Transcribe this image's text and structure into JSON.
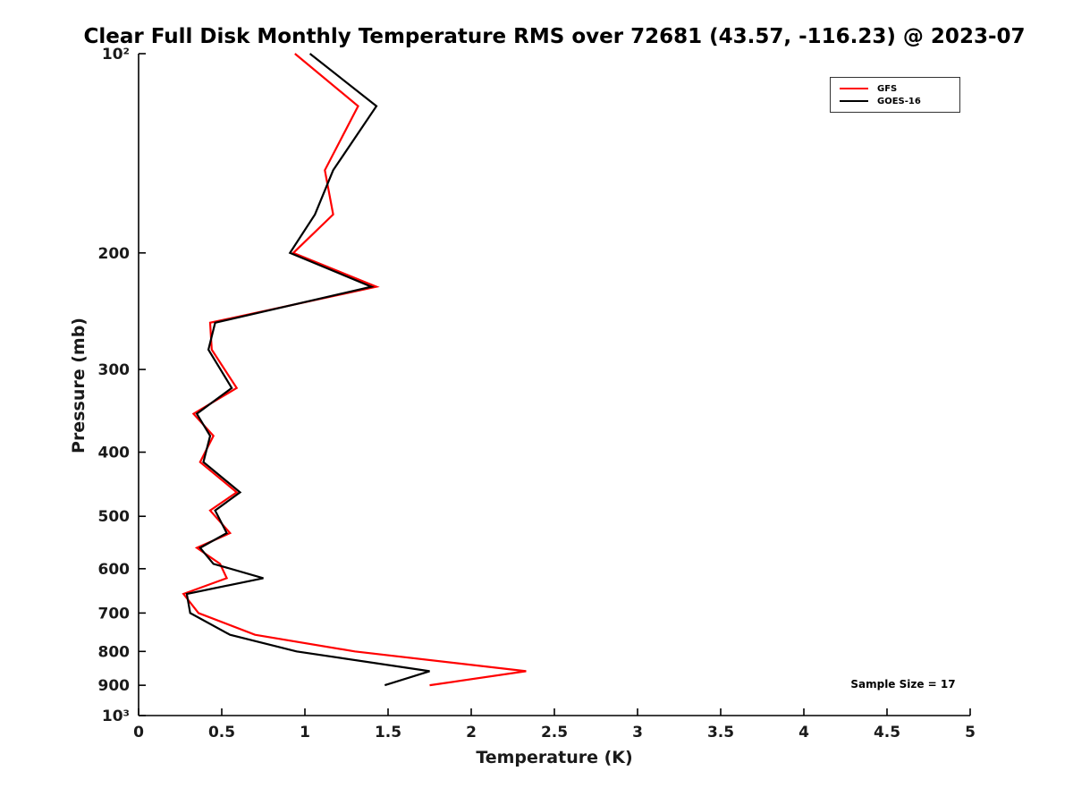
{
  "figure": {
    "title": "Clear Full Disk Monthly Temperature RMS over 72681 (43.57, -116.23) @ 2023-07",
    "xlabel": "Temperature (K)",
    "ylabel": "Pressure (mb)",
    "annotation": "Sample Size = 17"
  },
  "legend": {
    "position": "top-right",
    "items": [
      {
        "label": "GFS",
        "color": "#ff0000"
      },
      {
        "label": "GOES-16",
        "color": "#000000"
      }
    ]
  },
  "chart_data": {
    "type": "line",
    "title": "Clear Full Disk Monthly Temperature RMS over 72681 (43.57, -116.23) @ 2023-07",
    "xlabel": "Temperature (K)",
    "ylabel": "Pressure (mb)",
    "xlim": [
      0,
      5
    ],
    "ylim": [
      100,
      1000
    ],
    "yscale": "log",
    "y_inverted": true,
    "grid": false,
    "legend_position": "top-right",
    "annotation": "Sample Size = 17",
    "x_ticks": [
      0,
      0.5,
      1,
      1.5,
      2,
      2.5,
      3,
      3.5,
      4,
      4.5,
      5
    ],
    "x_tick_labels": [
      "0",
      "0.5",
      "1",
      "1.5",
      "2",
      "2.5",
      "3",
      "3.5",
      "4",
      "4.5",
      "5"
    ],
    "y_ticks": [
      100,
      200,
      300,
      400,
      500,
      600,
      700,
      800,
      900,
      1000
    ],
    "y_tick_labels": [
      "10²",
      "200",
      "300",
      "400",
      "500",
      "600",
      "700",
      "800",
      "900",
      "10³"
    ],
    "pressure_mb": [
      100,
      120,
      150,
      175,
      200,
      225,
      255,
      280,
      320,
      350,
      378,
      414,
      460,
      490,
      530,
      558,
      590,
      620,
      655,
      700,
      755,
      800,
      857,
      900
    ],
    "series": [
      {
        "name": "GFS",
        "color": "#ff0000",
        "values": [
          0.94,
          1.32,
          1.12,
          1.17,
          0.93,
          1.43,
          0.43,
          0.44,
          0.59,
          0.33,
          0.45,
          0.37,
          0.59,
          0.43,
          0.55,
          0.35,
          0.49,
          0.53,
          0.27,
          0.36,
          0.7,
          1.3,
          2.33,
          1.75
        ]
      },
      {
        "name": "GOES-16",
        "color": "#000000",
        "values": [
          1.03,
          1.43,
          1.17,
          1.06,
          0.91,
          1.4,
          0.46,
          0.42,
          0.56,
          0.35,
          0.43,
          0.39,
          0.61,
          0.46,
          0.53,
          0.37,
          0.45,
          0.75,
          0.29,
          0.31,
          0.55,
          0.95,
          1.75,
          1.48
        ]
      }
    ]
  }
}
